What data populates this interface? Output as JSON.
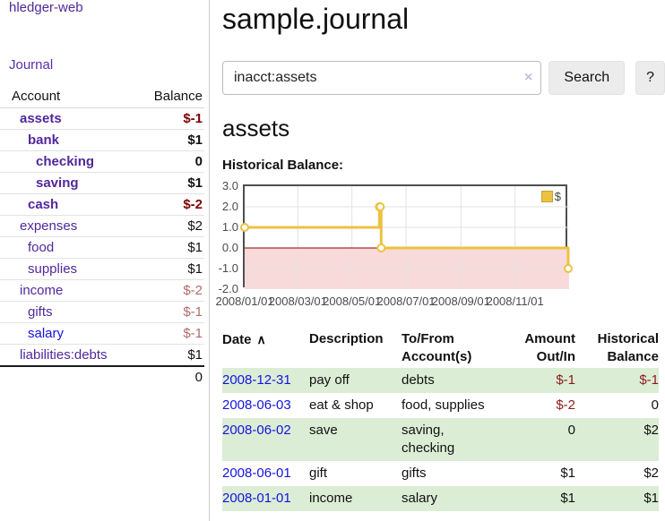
{
  "app": {
    "brand": "hledger-web"
  },
  "colors": {
    "purple_link": "#50289c",
    "blue_link": "#1414e0",
    "negative_strong": "#800000",
    "negative_muted": "#b36a6a",
    "table_negative": "#8b1a1a",
    "row_stripe_green": "#dcedd5",
    "series_gold": "#edc240",
    "negative_region_pink": "#f9dada",
    "zero_line_red": "#8b0000"
  },
  "sidebar": {
    "journal_link": "Journal",
    "accounts": {
      "col_account": "Account",
      "col_balance": "Balance",
      "rows": [
        {
          "name": "assets",
          "depth": 1,
          "balance": "$-1",
          "emph": true,
          "neg": "strong"
        },
        {
          "name": "bank",
          "depth": 2,
          "balance": "$1",
          "emph": true,
          "neg": "none"
        },
        {
          "name": "checking",
          "depth": 3,
          "balance": "0",
          "emph": true,
          "neg": "none"
        },
        {
          "name": "saving",
          "depth": 3,
          "balance": "$1",
          "emph": true,
          "neg": "none"
        },
        {
          "name": "cash",
          "depth": 2,
          "balance": "$-2",
          "emph": true,
          "neg": "strong"
        },
        {
          "name": "expenses",
          "depth": 1,
          "balance": "$2",
          "emph": false,
          "neg": "none"
        },
        {
          "name": "food",
          "depth": 2,
          "balance": "$1",
          "emph": false,
          "neg": "none"
        },
        {
          "name": "supplies",
          "depth": 2,
          "balance": "$1",
          "emph": false,
          "neg": "none"
        },
        {
          "name": "income",
          "depth": 1,
          "balance": "$-2",
          "emph": false,
          "neg": "muted"
        },
        {
          "name": "gifts",
          "depth": 2,
          "balance": "$-1",
          "emph": false,
          "neg": "muted"
        },
        {
          "name": "salary",
          "depth": 2,
          "balance": "$-1",
          "emph": false,
          "neg": "muted",
          "link": "blue"
        },
        {
          "name": "liabilities:debts",
          "depth": 1,
          "balance": "$1",
          "emph": false,
          "neg": "none"
        }
      ],
      "total": "0"
    }
  },
  "main": {
    "title": "sample.journal",
    "search": {
      "value": "inacct:assets",
      "clear": "×",
      "button": "Search",
      "help": "?"
    },
    "heading": "assets",
    "chart_title": "Historical Balance:",
    "register": {
      "headers": {
        "date": {
          "l1": "Date",
          "sort": "∧"
        },
        "description": {
          "l1": "Description",
          "l2": ""
        },
        "account": {
          "l1": "To/From",
          "l2": "Account(s)"
        },
        "amount": {
          "l1": "Amount",
          "l2": "Out/In"
        },
        "balance": {
          "l1": "Historical",
          "l2": "Balance"
        }
      },
      "rows": [
        {
          "date": "2008-12-31",
          "desc": "pay off",
          "accts": "debts",
          "amount": "$-1",
          "amount_neg": true,
          "balance": "$-1",
          "balance_neg": true
        },
        {
          "date": "2008-06-03",
          "desc": "eat & shop",
          "accts": "food, supplies",
          "amount": "$-2",
          "amount_neg": true,
          "balance": "0",
          "balance_neg": false
        },
        {
          "date": "2008-06-02",
          "desc": "save",
          "accts": "saving, checking",
          "amount": "0",
          "amount_neg": false,
          "balance": "$2",
          "balance_neg": false
        },
        {
          "date": "2008-06-01",
          "desc": "gift",
          "accts": "gifts",
          "amount": "$1",
          "amount_neg": false,
          "balance": "$2",
          "balance_neg": false
        },
        {
          "date": "2008-01-01",
          "desc": "income",
          "accts": "salary",
          "amount": "$1",
          "amount_neg": false,
          "balance": "$1",
          "balance_neg": false
        }
      ]
    }
  },
  "chart_data": {
    "type": "line",
    "title": "Historical Balance:",
    "step": true,
    "series": [
      {
        "name": "$",
        "color": "#edc240",
        "points": [
          [
            "2008-01-01",
            1
          ],
          [
            "2008-06-01",
            2
          ],
          [
            "2008-06-02",
            2
          ],
          [
            "2008-06-03",
            0
          ],
          [
            "2008-12-31",
            -1
          ]
        ]
      }
    ],
    "x_range": [
      "2008-01-01",
      "2009-01-01"
    ],
    "x_ticks": [
      {
        "date": "2008-01-01",
        "label": "2008/01/01"
      },
      {
        "date": "2008-03-01",
        "label": "2008/03/01"
      },
      {
        "date": "2008-05-01",
        "label": "2008/05/01"
      },
      {
        "date": "2008-07-01",
        "label": "2008/07/01"
      },
      {
        "date": "2008-09-01",
        "label": "2008/09/01"
      },
      {
        "date": "2008-11-01",
        "label": "2008/11/01"
      }
    ],
    "y_ticks": [
      3.0,
      2.0,
      1.0,
      0.0,
      -1.0,
      -2.0
    ],
    "ylim": [
      -2,
      3
    ],
    "grid": true,
    "negative_region_color": "#f9dada",
    "zero_line_color": "#8b0000",
    "legend": {
      "label": "$",
      "position": "top-right"
    }
  }
}
